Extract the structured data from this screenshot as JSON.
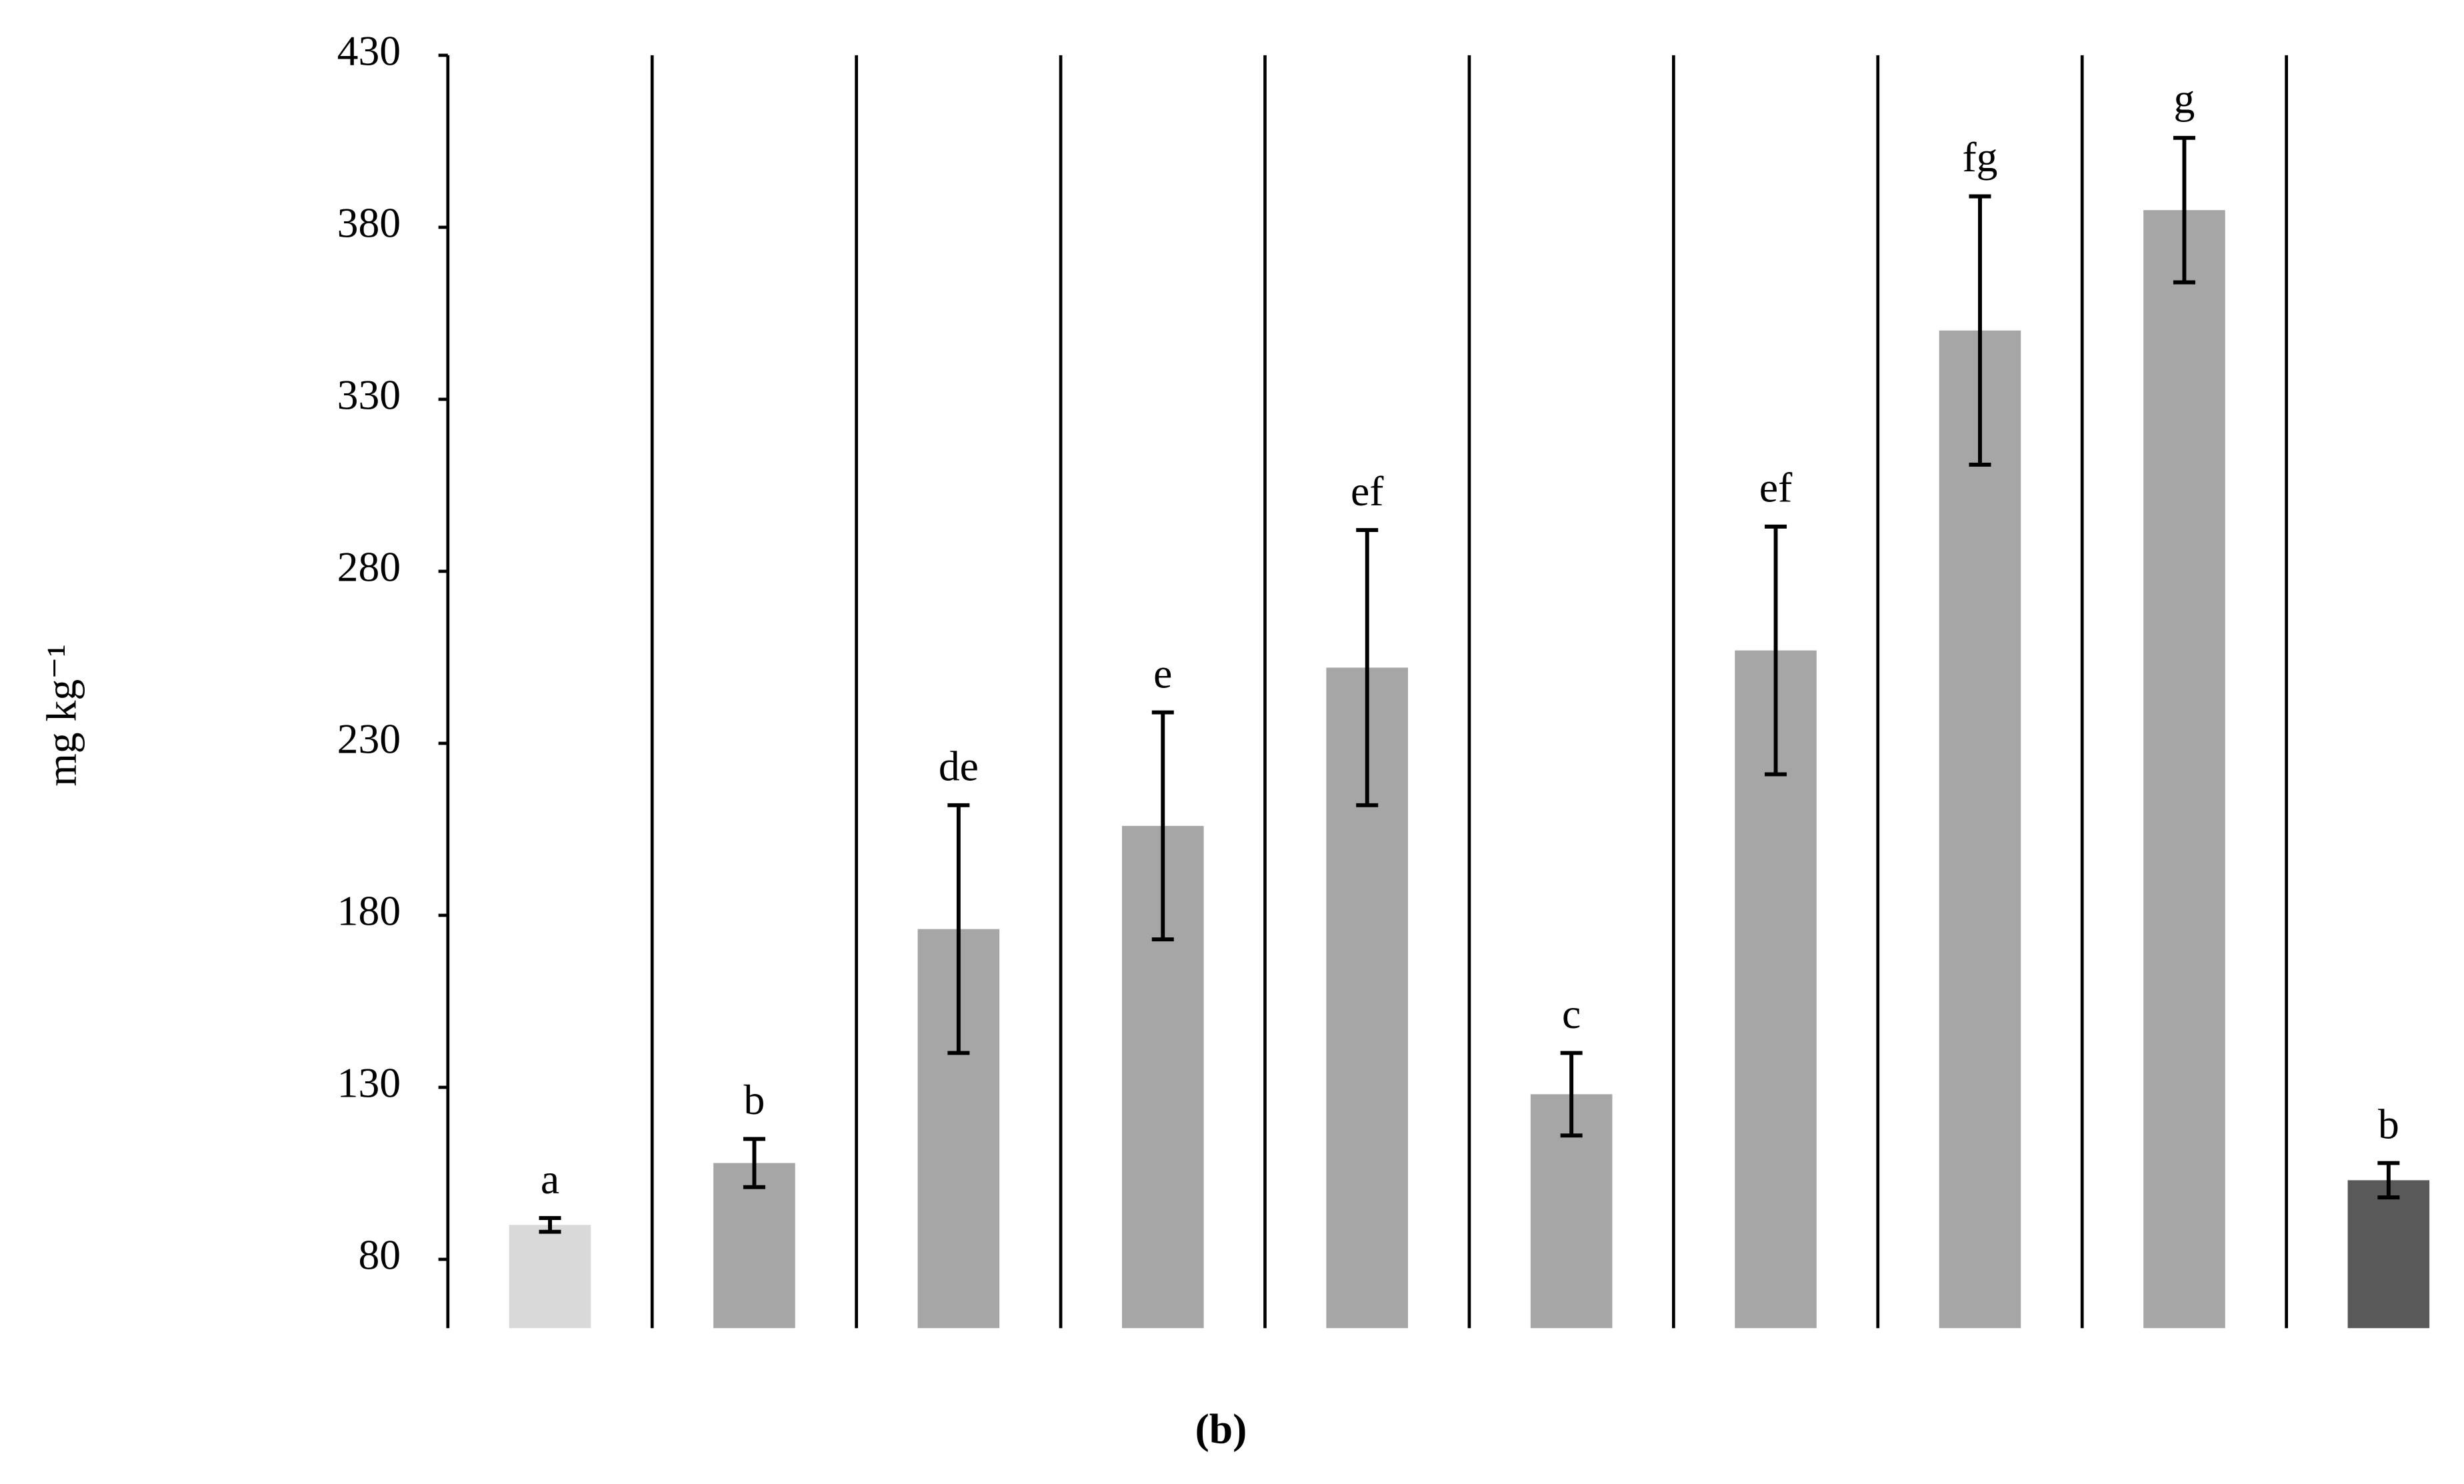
{
  "chart_data": {
    "type": "bar",
    "y_label": "mg kg⁻¹",
    "caption": "(b)",
    "categories": [
      null,
      null,
      null,
      null,
      null,
      null,
      null,
      null,
      null,
      null
    ],
    "values": [
      90,
      108,
      176,
      206,
      252,
      128,
      257,
      350,
      385,
      103
    ],
    "errors": [
      2,
      7,
      36,
      33,
      40,
      12,
      36,
      39,
      21,
      5
    ],
    "annotations": [
      "a",
      "b",
      "de",
      "e",
      "ef",
      "c",
      "ef",
      "fg",
      "g",
      "b"
    ],
    "colors": [
      "#d9d9d9",
      "#a6a6a6",
      "#a6a6a6",
      "#a6a6a6",
      "#a6a6a6",
      "#a6a6a6",
      "#a6a6a6",
      "#a6a6a6",
      "#a6a6a6",
      "#595959"
    ],
    "ylim": [
      60,
      430
    ],
    "yticks": [
      80,
      130,
      180,
      230,
      280,
      330,
      380,
      430
    ],
    "grid": false
  }
}
